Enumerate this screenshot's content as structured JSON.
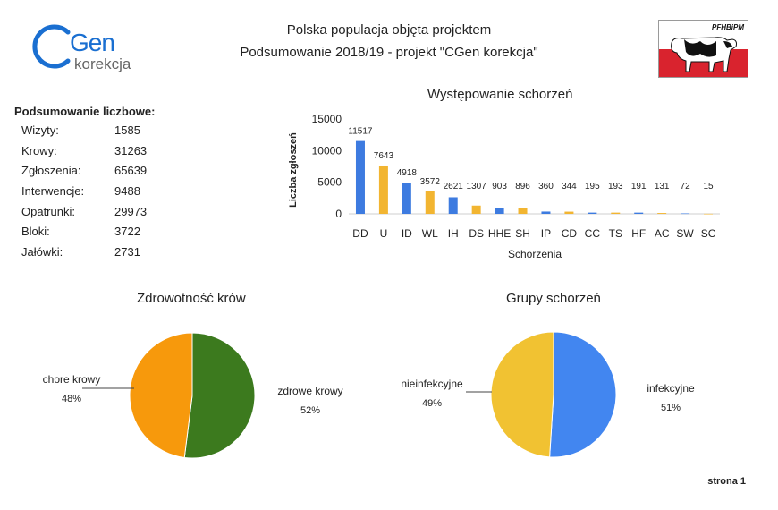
{
  "header": {
    "title_line1": "Polska populacja objęta projektem",
    "title_line2": "Podsumowanie 2018/19 - projekt \"CGen korekcja\""
  },
  "logo": {
    "gen": "Gen",
    "korekcja": "korekcja",
    "colors": {
      "c": "#1a6fd1",
      "text": "#666666"
    }
  },
  "flag_logo": {
    "text": "PFHBiPM",
    "colors": {
      "top": "#ffffff",
      "bottom": "#d9232e"
    }
  },
  "summary": {
    "heading": "Podsumowanie liczbowe:",
    "rows": [
      {
        "label": "Wizyty:",
        "value": "1585"
      },
      {
        "label": "Krowy:",
        "value": "31263"
      },
      {
        "label": "Zgłoszenia:",
        "value": "65639"
      },
      {
        "label": "Interwencje:",
        "value": "9488"
      },
      {
        "label": "Opatrunki:",
        "value": "29973"
      },
      {
        "label": "Bloki:",
        "value": "3722"
      },
      {
        "label": "Jałówki:",
        "value": "2731"
      }
    ]
  },
  "chart_data": [
    {
      "type": "bar",
      "title": "Występowanie schorzeń",
      "xlabel": "Schorzenia",
      "ylabel": "Liczba zgłoszeń",
      "ylim": [
        0,
        15000
      ],
      "yticks": [
        0,
        5000,
        10000,
        15000
      ],
      "categories": [
        "DD",
        "U",
        "ID",
        "WL",
        "IH",
        "DS",
        "HHE",
        "SH",
        "IP",
        "CD",
        "CC",
        "TS",
        "HF",
        "AC",
        "SW",
        "SC"
      ],
      "values": [
        11517,
        7643,
        4918,
        3572,
        2621,
        1307,
        903,
        896,
        360,
        344,
        195,
        193,
        191,
        131,
        72,
        15
      ],
      "colors": [
        "#3d7be0",
        "#f2b531"
      ],
      "grid": false,
      "legend": "none"
    },
    {
      "type": "pie",
      "title": "Zdrowotność krów",
      "slices": [
        {
          "label": "zdrowe krowy",
          "value": 52,
          "pct": "52%",
          "color": "#3c7a1e"
        },
        {
          "label": "chore krowy",
          "value": 48,
          "pct": "48%",
          "color": "#f7990c"
        }
      ]
    },
    {
      "type": "pie",
      "title": "Grupy schorzeń",
      "slices": [
        {
          "label": "infekcyjne",
          "value": 51,
          "pct": "51%",
          "color": "#4286f0"
        },
        {
          "label": "nieinfekcyjne",
          "value": 49,
          "pct": "49%",
          "color": "#f1c232"
        }
      ]
    }
  ],
  "footer": {
    "page": "strona 1"
  }
}
